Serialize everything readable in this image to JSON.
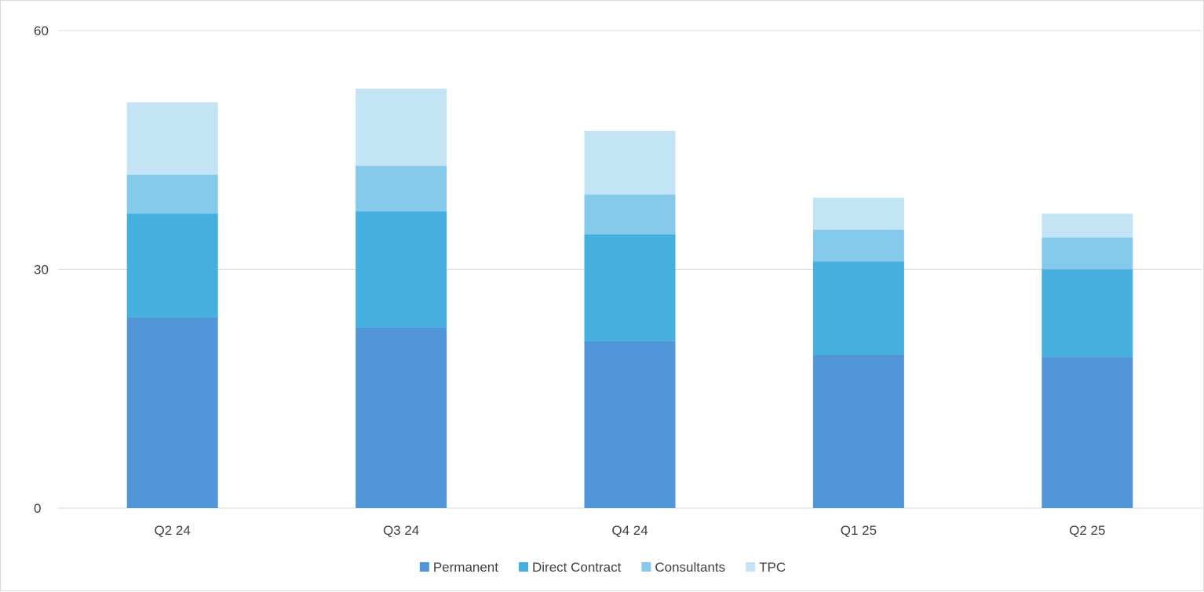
{
  "chart_data": {
    "type": "bar",
    "stacked": true,
    "categories": [
      "Q2 24",
      "Q3 24",
      "Q4 24",
      "Q1 25",
      "Q2 25"
    ],
    "series": [
      {
        "name": "Permanent",
        "color": "#5096D8",
        "values": [
          24,
          22.7,
          21,
          19.3,
          19
        ]
      },
      {
        "name": "Direct Contract",
        "color": "#45AFDF",
        "values": [
          13,
          14.6,
          13.4,
          11.7,
          11
        ]
      },
      {
        "name": "Consultants",
        "color": "#86CAEB",
        "values": [
          4.9,
          5.7,
          5,
          4,
          4
        ]
      },
      {
        "name": "TPC",
        "color": "#C2E4F4",
        "values": [
          9.1,
          9.7,
          8,
          4,
          3
        ]
      }
    ],
    "y_ticks": [
      "0",
      "30",
      "60"
    ],
    "ylim": [
      0,
      60
    ],
    "grid": true,
    "legend_position": "bottom"
  }
}
